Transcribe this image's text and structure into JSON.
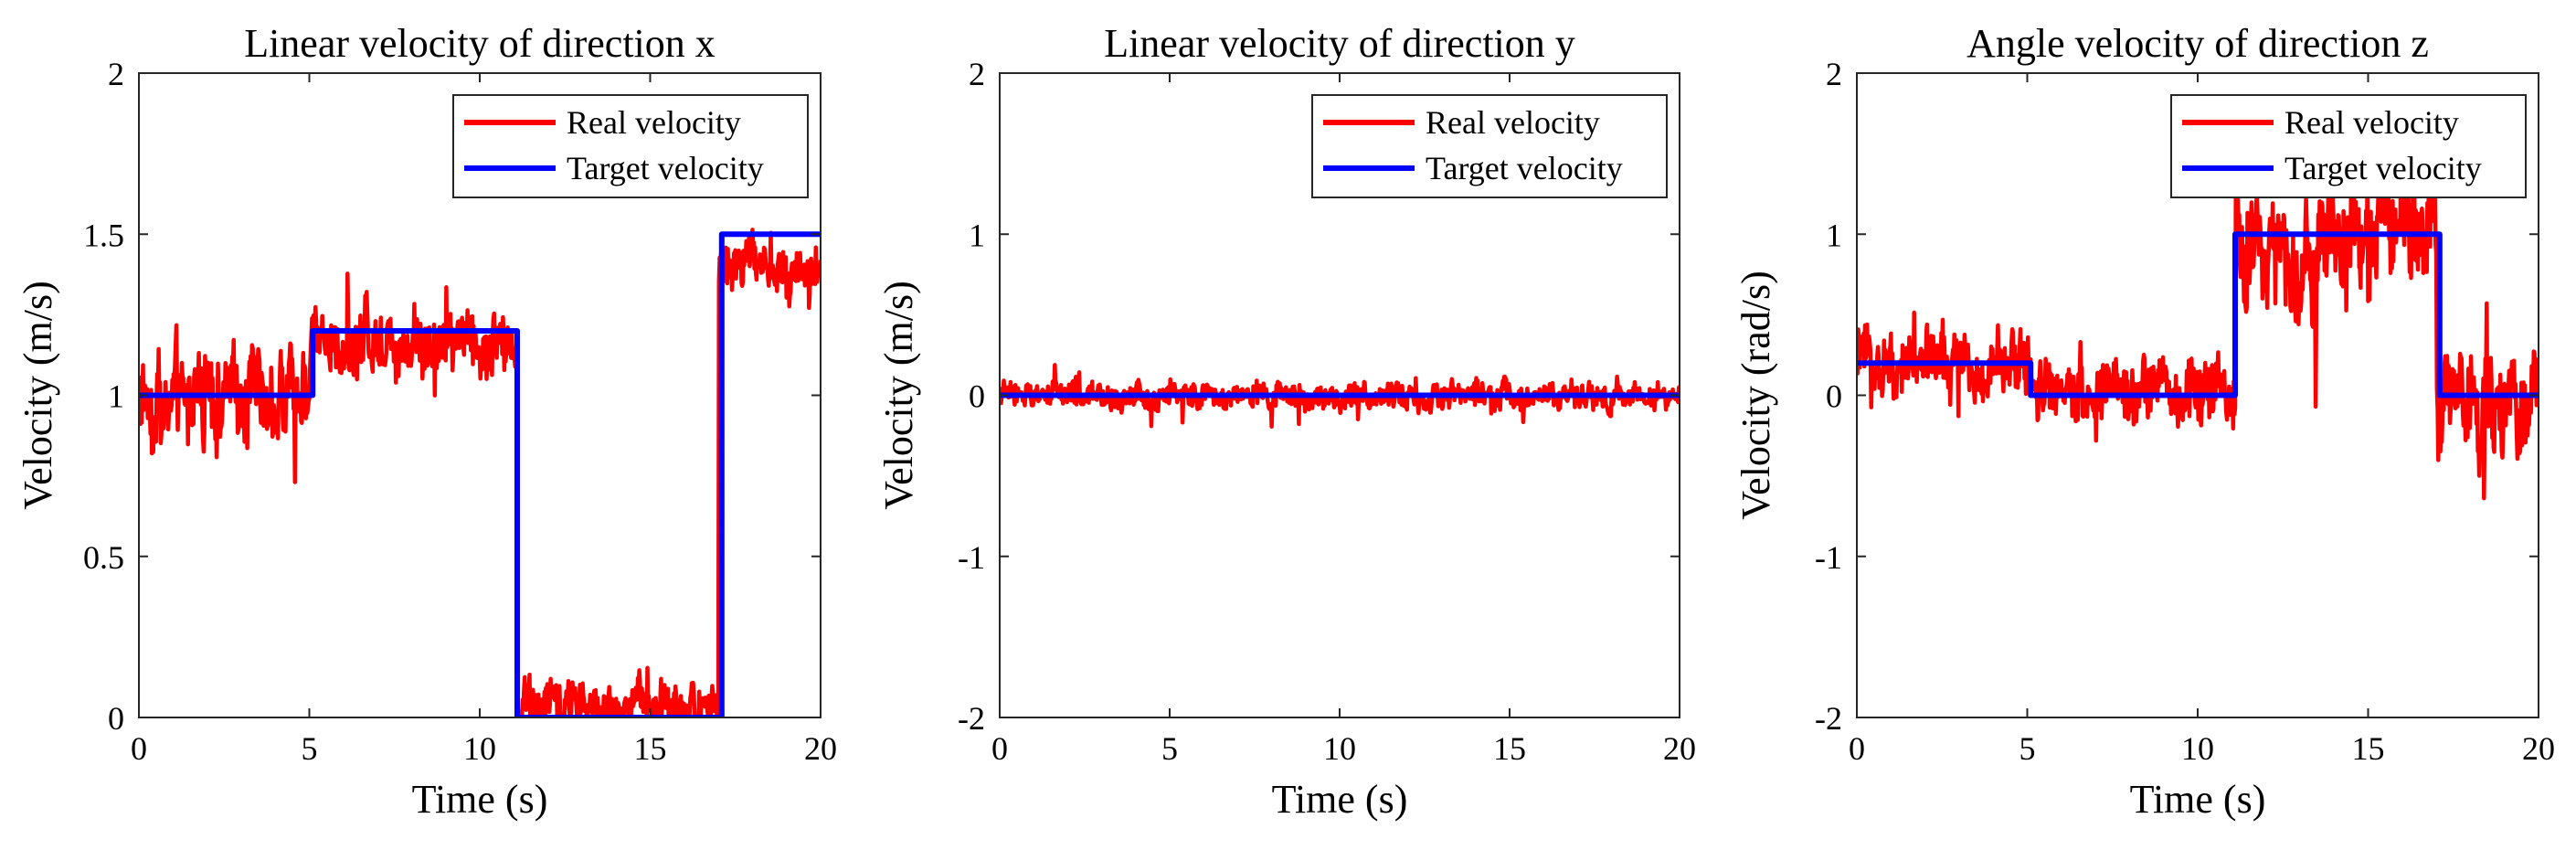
{
  "figure": {
    "description_free": true
  },
  "chart_data": [
    {
      "type": "line",
      "title": "Linear velocity of direction x",
      "xlabel": "Time (s)",
      "ylabel": "Velocity (m/s)",
      "xlim": [
        0,
        20
      ],
      "ylim": [
        0,
        2
      ],
      "xticks": [
        0,
        5,
        10,
        15,
        20
      ],
      "yticks": [
        0,
        0.5,
        1,
        1.5,
        2
      ],
      "xtick_labels": [
        "0",
        "5",
        "10",
        "15",
        "20"
      ],
      "ytick_labels": [
        "0",
        "0.5",
        "1",
        "1.5",
        "2"
      ],
      "legend_position": "top-right",
      "series": [
        {
          "name": "Real velocity",
          "color": "#ff0000",
          "noisy_segments": [
            {
              "t0": 0.0,
              "t1": 5.0,
              "mean": 1.0,
              "amplitude": 0.2
            },
            {
              "t0": 5.0,
              "t1": 11.1,
              "mean": 1.17,
              "amplitude": 0.15
            },
            {
              "t0": 11.1,
              "t1": 17.0,
              "mean": 0.04,
              "amplitude": 0.1
            },
            {
              "t0": 17.0,
              "t1": 20.0,
              "mean": 1.4,
              "amplitude": 0.12
            }
          ]
        },
        {
          "name": "Target velocity",
          "color": "#0000ff",
          "x": [
            0,
            5.1,
            5.1,
            11.1,
            11.1,
            17.1,
            17.1,
            20
          ],
          "y": [
            1,
            1,
            1.2,
            1.2,
            0,
            0,
            1.5,
            1.5
          ]
        }
      ]
    },
    {
      "type": "line",
      "title": "Linear velocity of direction y",
      "xlabel": "Time (s)",
      "ylabel": "Velocity (m/s)",
      "xlim": [
        0,
        20
      ],
      "ylim": [
        -2,
        2
      ],
      "xticks": [
        0,
        5,
        10,
        15,
        20
      ],
      "yticks": [
        -2,
        -1,
        0,
        1,
        2
      ],
      "xtick_labels": [
        "0",
        "5",
        "10",
        "15",
        "20"
      ],
      "ytick_labels": [
        "-2",
        "-1",
        "0",
        "1",
        "2"
      ],
      "legend_position": "top-right",
      "series": [
        {
          "name": "Real velocity",
          "color": "#ff0000",
          "noisy_segments": [
            {
              "t0": 0.0,
              "t1": 20.0,
              "mean": 0.0,
              "amplitude": 0.12
            }
          ]
        },
        {
          "name": "Target velocity",
          "color": "#0000ff",
          "x": [
            0,
            20
          ],
          "y": [
            0,
            0
          ]
        }
      ]
    },
    {
      "type": "line",
      "title": "Angle velocity of direction z",
      "xlabel": "Time (s)",
      "ylabel": "Velocity (rad/s)",
      "xlim": [
        0,
        20
      ],
      "ylim": [
        -2,
        2
      ],
      "xticks": [
        0,
        5,
        10,
        15,
        20
      ],
      "yticks": [
        -2,
        -1,
        0,
        1,
        2
      ],
      "xtick_labels": [
        "0",
        "5",
        "10",
        "15",
        "20"
      ],
      "ytick_labels": [
        "-2",
        "-1",
        "0",
        "1",
        "2"
      ],
      "legend_position": "top-right",
      "series": [
        {
          "name": "Real velocity",
          "color": "#ff0000",
          "noisy_segments": [
            {
              "t0": 0.0,
              "t1": 5.1,
              "mean": 0.2,
              "amplitude": 0.3
            },
            {
              "t0": 5.1,
              "t1": 11.1,
              "mean": 0.02,
              "amplitude": 0.3
            },
            {
              "t0": 11.1,
              "t1": 17.0,
              "mean": 0.95,
              "amplitude": 0.5
            },
            {
              "t0": 17.0,
              "t1": 20.0,
              "mean": 0.0,
              "amplitude": 0.45
            }
          ]
        },
        {
          "name": "Target velocity",
          "color": "#0000ff",
          "x": [
            0,
            5.1,
            5.1,
            11.1,
            11.1,
            17.1,
            17.1,
            20
          ],
          "y": [
            0.2,
            0.2,
            0,
            0,
            1,
            1,
            0,
            0
          ]
        }
      ]
    }
  ]
}
